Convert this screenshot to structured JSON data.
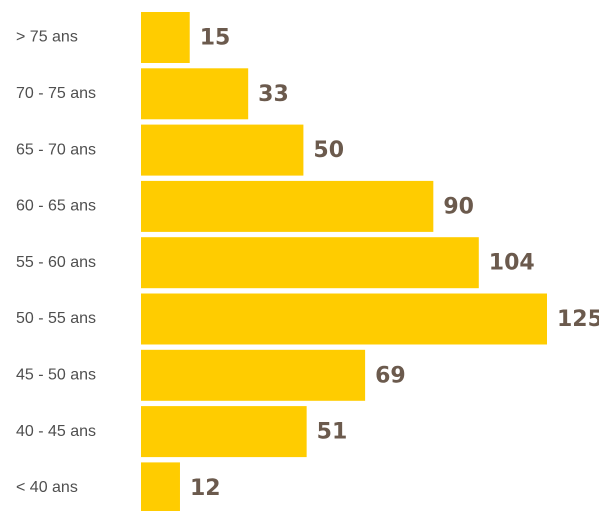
{
  "chart_data": {
    "type": "bar",
    "orientation": "horizontal",
    "categories": [
      "> 75 ans",
      "70 - 75 ans",
      "65 - 70 ans",
      "60 - 65 ans",
      "55 - 60 ans",
      "50 - 55 ans",
      "45 - 50 ans",
      "40 - 45 ans",
      "< 40 ans"
    ],
    "values": [
      15,
      33,
      50,
      90,
      104,
      125,
      69,
      51,
      12
    ],
    "data_labels": [
      "15",
      "33",
      "50",
      "90",
      "104",
      "125",
      "69",
      "51",
      "12"
    ],
    "xlim": [
      0,
      125
    ],
    "grid": false,
    "legend": "none",
    "colors": {
      "bar": "#FFCC00",
      "value_label": "#6B5A4D",
      "category_label": "#4F4F4F"
    }
  }
}
